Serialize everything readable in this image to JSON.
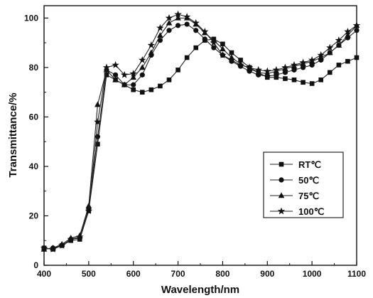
{
  "chart_data": {
    "type": "line",
    "title": "",
    "xlabel": "Wavelength/nm",
    "ylabel": "Transmittance/%",
    "xlim": [
      400,
      1100
    ],
    "ylim": [
      0,
      105
    ],
    "xticks": [
      400,
      500,
      600,
      700,
      800,
      900,
      1000,
      1100
    ],
    "yticks": [
      0,
      20,
      40,
      60,
      80,
      100
    ],
    "grid": false,
    "legend_position": "bottom-right",
    "series": [
      {
        "name": "RT℃",
        "marker": "square",
        "x": [
          400,
          420,
          440,
          460,
          480,
          500,
          520,
          540,
          560,
          580,
          600,
          620,
          640,
          660,
          680,
          700,
          720,
          740,
          760,
          780,
          800,
          820,
          840,
          860,
          880,
          900,
          920,
          940,
          960,
          980,
          1000,
          1020,
          1040,
          1060,
          1080,
          1100
        ],
        "y": [
          7,
          6.5,
          8,
          10,
          10.5,
          22,
          49,
          77,
          75,
          73,
          71,
          70,
          71,
          72.5,
          75,
          79,
          84,
          88,
          91,
          91.5,
          89.5,
          86,
          83,
          80,
          78,
          76,
          76,
          75.5,
          75,
          74,
          73.5,
          75,
          78,
          81,
          82.5,
          84
        ]
      },
      {
        "name": "50℃",
        "marker": "circle",
        "x": [
          400,
          420,
          440,
          460,
          480,
          500,
          520,
          540,
          560,
          580,
          600,
          620,
          640,
          660,
          680,
          700,
          720,
          740,
          760,
          780,
          800,
          820,
          840,
          860,
          880,
          900,
          920,
          940,
          960,
          980,
          1000,
          1020,
          1040,
          1060,
          1080,
          1100
        ],
        "y": [
          6.5,
          7,
          8,
          10.5,
          11,
          23,
          52,
          79,
          77,
          73,
          73,
          77,
          85,
          91,
          95,
          97,
          97.5,
          95,
          91.5,
          88,
          85,
          82.5,
          80.5,
          78.5,
          77,
          76.5,
          77,
          78,
          79,
          80,
          81,
          83,
          86,
          89,
          92,
          95
        ]
      },
      {
        "name": "75℃",
        "marker": "triangle",
        "x": [
          400,
          420,
          440,
          460,
          480,
          500,
          520,
          540,
          560,
          580,
          600,
          620,
          640,
          660,
          680,
          700,
          720,
          740,
          760,
          780,
          800,
          820,
          840,
          860,
          880,
          900,
          920,
          940,
          960,
          980,
          1000,
          1020,
          1040,
          1060,
          1080,
          1100
        ],
        "y": [
          6.5,
          7,
          8.5,
          11,
          12,
          24,
          65,
          79,
          75,
          73,
          76,
          80,
          86,
          93,
          98,
          100,
          100,
          97.5,
          94,
          91,
          87.5,
          84,
          81.5,
          79.5,
          78,
          77.5,
          78.5,
          79.5,
          80.5,
          81.5,
          82.5,
          84,
          86,
          89,
          93,
          97
        ]
      },
      {
        "name": "100℃",
        "marker": "star",
        "x": [
          400,
          420,
          440,
          460,
          480,
          500,
          520,
          540,
          560,
          580,
          600,
          620,
          640,
          660,
          680,
          700,
          720,
          740,
          760,
          780,
          800,
          820,
          840,
          860,
          880,
          900,
          920,
          940,
          960,
          980,
          1000,
          1020,
          1040,
          1060,
          1080,
          1100
        ],
        "y": [
          7,
          6.5,
          8,
          10.5,
          11.5,
          22,
          58,
          80,
          81,
          77,
          77.5,
          83,
          89,
          96,
          100,
          101.5,
          100.5,
          98,
          94.5,
          90,
          85,
          83,
          81,
          80,
          79,
          78.5,
          79,
          80,
          81,
          82,
          83,
          85,
          88,
          91,
          94.5,
          97
        ]
      }
    ]
  }
}
